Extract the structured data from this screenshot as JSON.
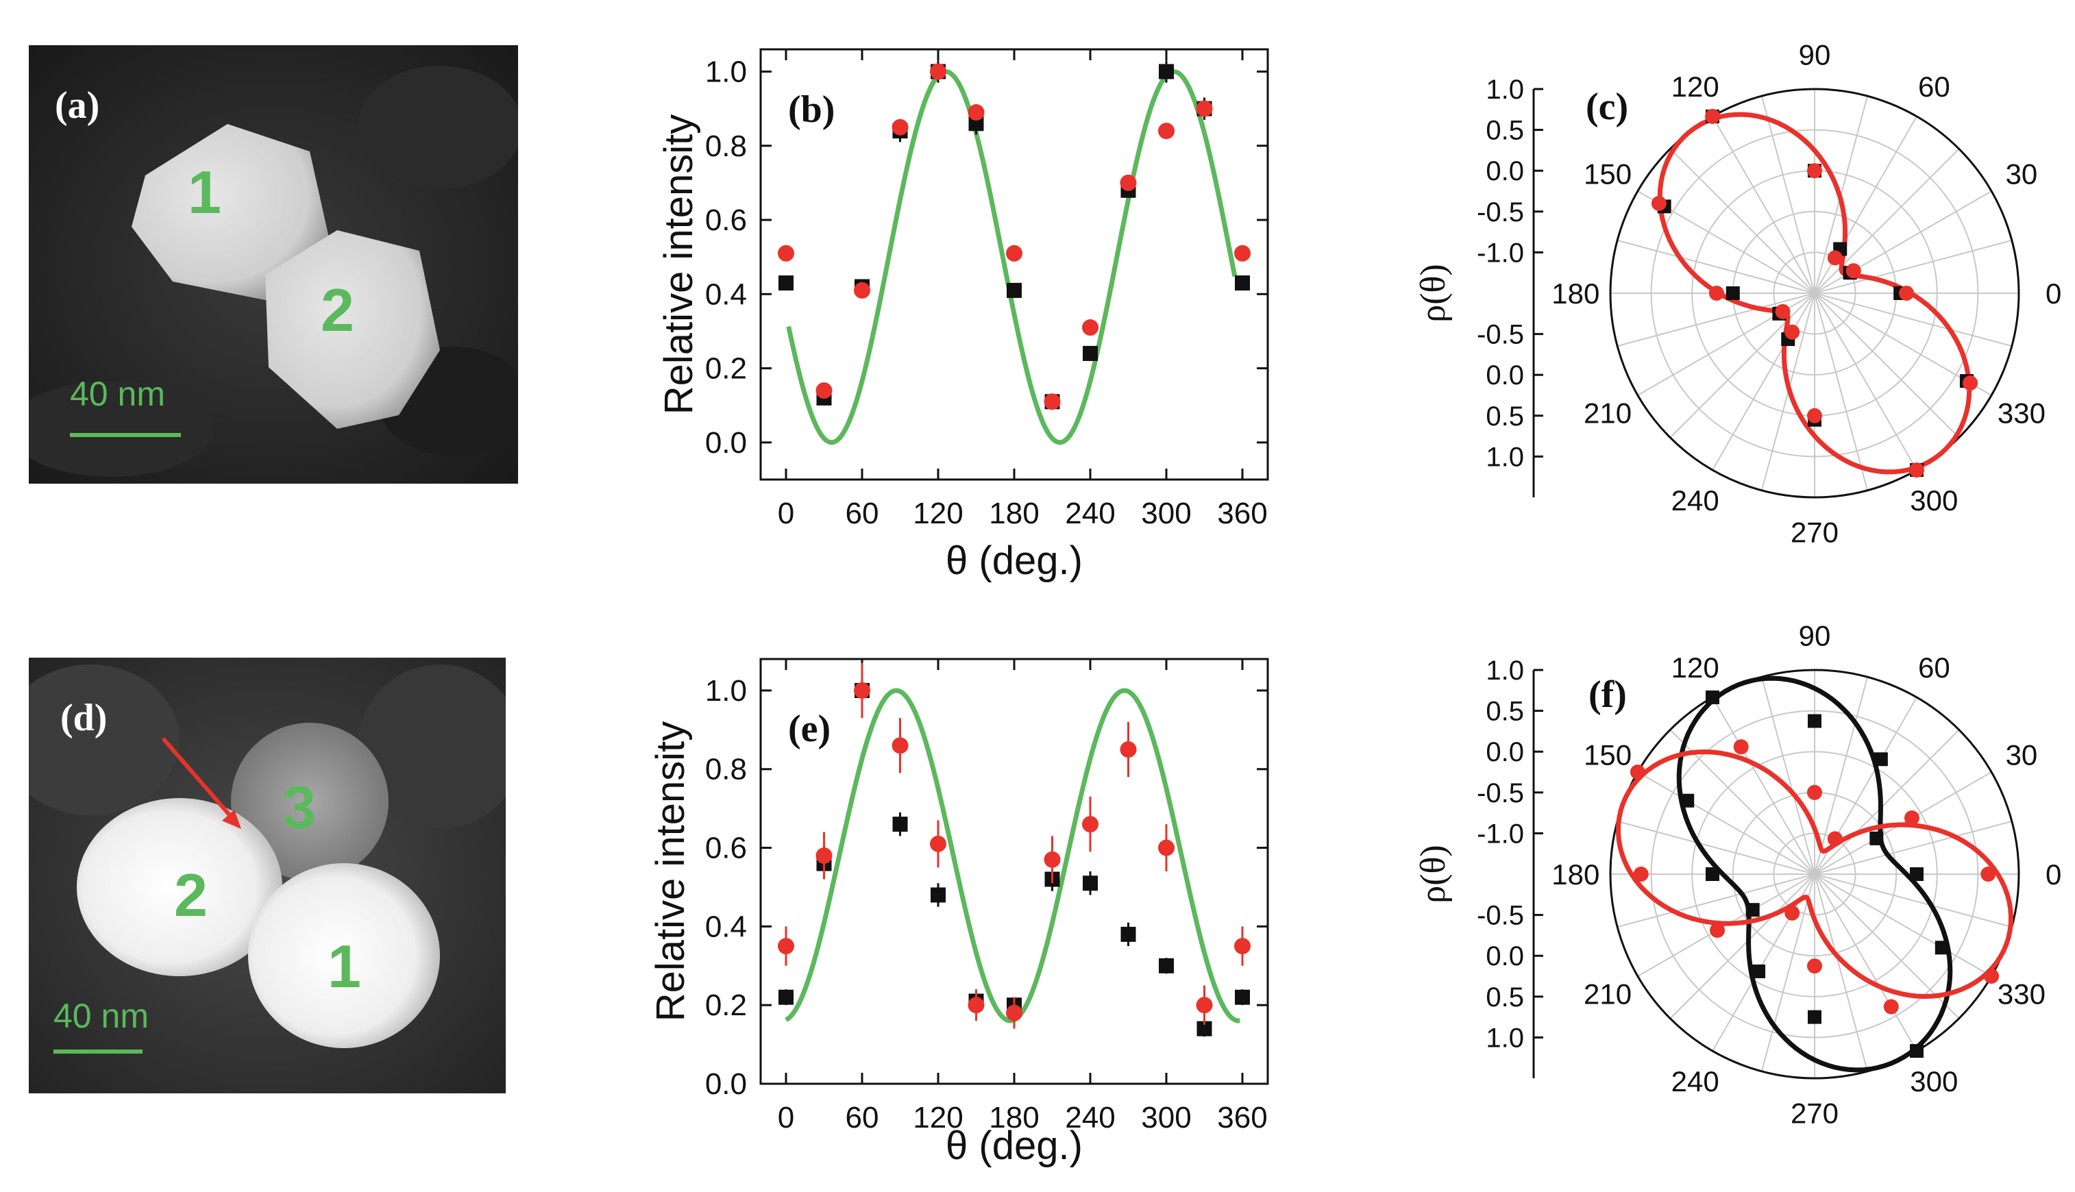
{
  "colors": {
    "red": "#e8322b",
    "black": "#111111",
    "green": "#5cb85c",
    "grid": "#c8c8c8"
  },
  "sem_panels": [
    {
      "letter": "(a)",
      "scale_label": "40 nm",
      "particles": [
        "1",
        "2"
      ]
    },
    {
      "letter": "(d)",
      "scale_label": "40 nm",
      "particles": [
        "3",
        "2",
        "1"
      ]
    }
  ],
  "chart_data": [
    {
      "id": "b",
      "panel_label": "(b)",
      "type": "scatter",
      "xlabel": "θ (deg.)",
      "ylabel": "Relative intensity",
      "xlim": [
        -20,
        380
      ],
      "ylim": [
        -0.1,
        1.06
      ],
      "xticks": [
        0,
        60,
        120,
        180,
        240,
        300,
        360
      ],
      "yticks": [
        0.0,
        0.2,
        0.4,
        0.6,
        0.8,
        1.0
      ],
      "series": [
        {
          "name": "black",
          "color": "#111111",
          "marker": "square",
          "x": [
            0,
            30,
            60,
            90,
            120,
            150,
            180,
            210,
            240,
            270,
            300,
            330,
            360
          ],
          "y": [
            0.43,
            0.12,
            0.42,
            0.84,
            1.0,
            0.86,
            0.41,
            0.11,
            0.24,
            0.68,
            1.0,
            0.9,
            0.43
          ],
          "err": [
            0.02,
            0.02,
            0.02,
            0.03,
            0.03,
            0.03,
            0.02,
            0.02,
            0.02,
            0.02,
            0.03,
            0.03,
            0.02
          ]
        },
        {
          "name": "red",
          "color": "#e8322b",
          "marker": "circle",
          "x": [
            0,
            30,
            60,
            90,
            120,
            150,
            180,
            210,
            240,
            270,
            300,
            330,
            360
          ],
          "y": [
            0.51,
            0.14,
            0.41,
            0.85,
            1.0,
            0.89,
            0.51,
            0.11,
            0.31,
            0.7,
            0.84,
            0.9,
            0.51
          ],
          "err": [
            0.01,
            0.01,
            0.01,
            0.02,
            0.02,
            0.02,
            0.01,
            0.01,
            0.01,
            0.02,
            0.01,
            0.02,
            0.01
          ]
        }
      ],
      "fit": {
        "color": "#5cb85c",
        "x_range": [
          2,
          355
        ],
        "amp": 0.5,
        "offset": 0.5,
        "phase_deg": 126,
        "period_deg": 180
      }
    },
    {
      "id": "e",
      "panel_label": "(e)",
      "type": "scatter",
      "xlabel": "θ (deg.)",
      "ylabel": "Relative intensity",
      "xlim": [
        -20,
        380
      ],
      "ylim": [
        0.0,
        1.08
      ],
      "xticks": [
        0,
        60,
        120,
        180,
        240,
        300,
        360
      ],
      "yticks": [
        0.0,
        0.2,
        0.4,
        0.6,
        0.8,
        1.0
      ],
      "series": [
        {
          "name": "black",
          "color": "#111111",
          "marker": "square",
          "x": [
            0,
            30,
            60,
            90,
            120,
            150,
            180,
            210,
            240,
            270,
            300,
            330,
            360
          ],
          "y": [
            0.22,
            0.56,
            1.0,
            0.66,
            0.48,
            0.21,
            0.2,
            0.52,
            0.51,
            0.38,
            0.3,
            0.14,
            0.22
          ],
          "err": [
            0.02,
            0.03,
            0.04,
            0.03,
            0.03,
            0.03,
            0.02,
            0.03,
            0.03,
            0.03,
            0.02,
            0.02,
            0.02
          ]
        },
        {
          "name": "red",
          "color": "#e8322b",
          "marker": "circle",
          "x": [
            0,
            30,
            60,
            90,
            120,
            150,
            180,
            210,
            240,
            270,
            300,
            330,
            360
          ],
          "y": [
            0.35,
            0.58,
            1.0,
            0.86,
            0.61,
            0.2,
            0.18,
            0.57,
            0.66,
            0.85,
            0.6,
            0.2,
            0.35
          ],
          "err": [
            0.05,
            0.06,
            0.07,
            0.07,
            0.06,
            0.04,
            0.04,
            0.06,
            0.07,
            0.07,
            0.06,
            0.05,
            0.05
          ]
        }
      ],
      "fit": {
        "color": "#5cb85c",
        "x_range": [
          0,
          358
        ],
        "amp": 0.42,
        "offset": 0.58,
        "phase_deg": 87,
        "period_deg": 180
      }
    },
    {
      "id": "c",
      "panel_label": "(c)",
      "type": "polar",
      "ylabel": "ρ(θ)",
      "angle_ticks": [
        0,
        30,
        60,
        90,
        120,
        150,
        180,
        210,
        240,
        270,
        300,
        330
      ],
      "radial_ticks_upper": [
        "1.0",
        "0.5",
        "0.0",
        "-0.5",
        "-1.0"
      ],
      "radial_ticks_lower": [
        "-0.5",
        "0.0",
        "0.5",
        "1.0"
      ],
      "series": [
        {
          "name": "black",
          "color": "#111111",
          "marker": "square",
          "theta": [
            0,
            30,
            60,
            90,
            120,
            150,
            180,
            210,
            240,
            270,
            300,
            330
          ],
          "rho": [
            0.42,
            0.2,
            0.25,
            0.6,
            1.0,
            0.85,
            0.4,
            0.2,
            0.26,
            0.62,
            1.0,
            0.86
          ]
        },
        {
          "name": "red",
          "color": "#e8322b",
          "marker": "circle",
          "theta": [
            0,
            30,
            60,
            90,
            120,
            150,
            180,
            210,
            240,
            270,
            300,
            330
          ],
          "rho": [
            0.45,
            0.22,
            0.2,
            0.6,
            1.0,
            0.88,
            0.48,
            0.18,
            0.22,
            0.6,
            1.0,
            0.88
          ]
        }
      ],
      "fits": [
        {
          "color": "#e8322b",
          "offset": 0.17,
          "amp": 0.83,
          "phase_deg": 127
        }
      ]
    },
    {
      "id": "f",
      "panel_label": "(f)",
      "type": "polar",
      "ylabel": "ρ(θ)",
      "angle_ticks": [
        0,
        30,
        60,
        90,
        120,
        150,
        180,
        210,
        240,
        270,
        300,
        330
      ],
      "radial_ticks_upper": [
        "1.0",
        "0.5",
        "0.0",
        "-0.5",
        "-1.0"
      ],
      "radial_ticks_lower": [
        "-0.5",
        "0.0",
        "0.5",
        "1.0"
      ],
      "series": [
        {
          "name": "black",
          "color": "#111111",
          "marker": "square",
          "theta": [
            0,
            30,
            60,
            90,
            120,
            150,
            180,
            210,
            240,
            270,
            300,
            330
          ],
          "rho": [
            0.5,
            0.35,
            0.65,
            0.75,
            1.0,
            0.72,
            0.5,
            0.35,
            0.55,
            0.7,
            1.0,
            0.72
          ]
        },
        {
          "name": "red",
          "color": "#e8322b",
          "marker": "circle",
          "theta": [
            0,
            30,
            60,
            90,
            120,
            150,
            180,
            210,
            240,
            270,
            300,
            330
          ],
          "rho": [
            0.85,
            0.55,
            0.2,
            0.4,
            0.72,
            1.0,
            0.85,
            0.55,
            0.22,
            0.45,
            0.75,
            1.0
          ]
        }
      ],
      "fits": [
        {
          "color": "#111111",
          "offset": 0.36,
          "amp": 0.64,
          "phase_deg": 112
        },
        {
          "color": "#e8322b",
          "offset": 0.12,
          "amp": 0.88,
          "phase_deg": 160
        }
      ]
    }
  ]
}
